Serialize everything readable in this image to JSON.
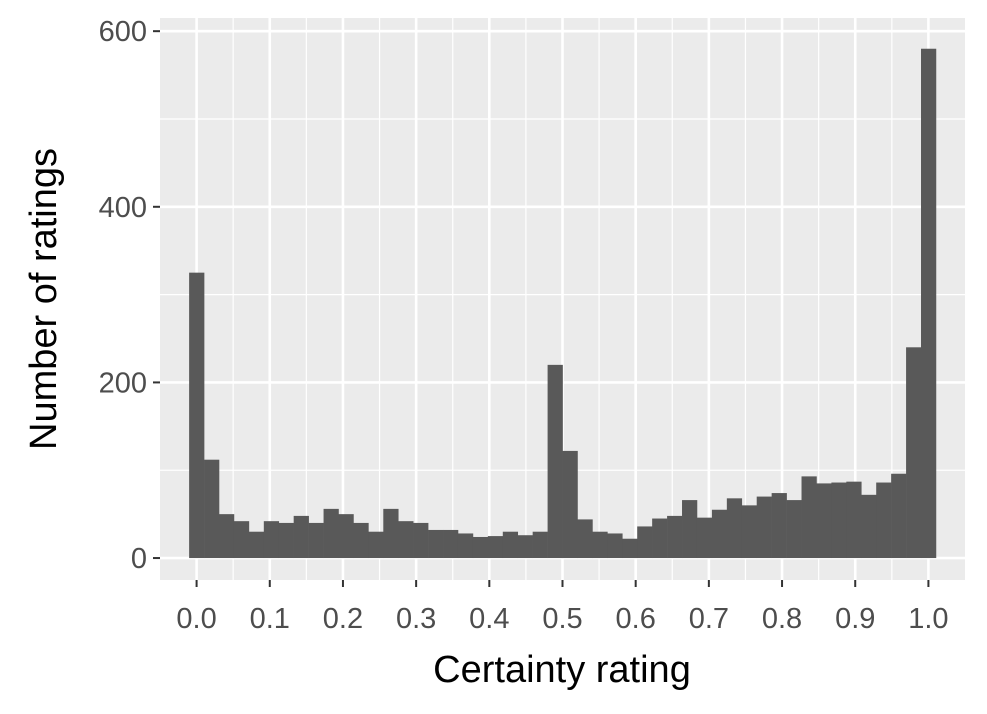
{
  "chart_data": {
    "type": "bar",
    "subtype": "histogram",
    "title": "",
    "xlabel": "Certainty rating",
    "ylabel": "Number of ratings",
    "xlim": [
      -0.05,
      1.05
    ],
    "ylim": [
      -25,
      615
    ],
    "x_ticks": [
      0.0,
      0.1,
      0.2,
      0.3,
      0.4,
      0.5,
      0.6,
      0.7,
      0.8,
      0.9,
      1.0
    ],
    "x_tick_labels": [
      "0.0",
      "0.1",
      "0.2",
      "0.3",
      "0.4",
      "0.5",
      "0.6",
      "0.7",
      "0.8",
      "0.9",
      "1.0"
    ],
    "y_ticks": [
      0,
      200,
      400,
      600
    ],
    "y_tick_labels": [
      "0",
      "200",
      "400",
      "600"
    ],
    "grid": true,
    "bin_width": 0.02041,
    "bin_start": -0.0102,
    "values": [
      325,
      112,
      50,
      42,
      30,
      42,
      40,
      48,
      40,
      56,
      50,
      40,
      30,
      56,
      42,
      40,
      32,
      32,
      28,
      24,
      25,
      30,
      26,
      30,
      220,
      122,
      44,
      30,
      28,
      22,
      36,
      45,
      48,
      66,
      46,
      55,
      68,
      60,
      70,
      74,
      66,
      93,
      85,
      86,
      87,
      72,
      86,
      96,
      240,
      580
    ],
    "colors": {
      "bar": "#595959",
      "panel": "#ebebeb",
      "grid": "#ffffff"
    }
  }
}
